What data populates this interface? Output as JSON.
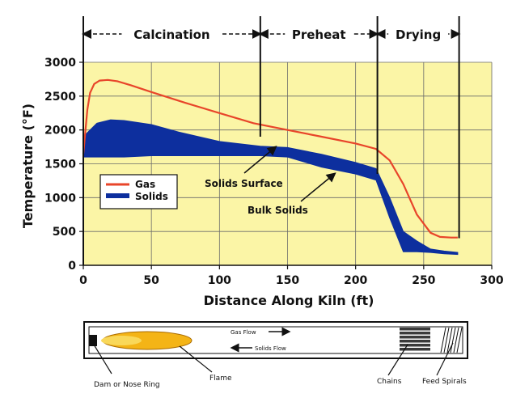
{
  "colors": {
    "background": "#ffffff",
    "plot_area": "#fbf5a6",
    "gas": "#e8452a",
    "solids": "#0d2f9e",
    "flame": "#f4b416",
    "chains": "#3a3a3a"
  },
  "zones": [
    {
      "label": "Calcination",
      "from": 0,
      "to": 130
    },
    {
      "label": "Preheat",
      "from": 130,
      "to": 216
    },
    {
      "label": "Drying",
      "from": 216,
      "to": 276
    }
  ],
  "annotations": {
    "solids_surface": "Solids Surface",
    "bulk_solids": "Bulk Solids"
  },
  "kiln": {
    "gas_flow": "Gas Flow",
    "solids_flow": "Solids Flow",
    "labels": [
      "Dam or Nose Ring",
      "Flame",
      "Chains",
      "Feed Spirals"
    ]
  },
  "chart_data": {
    "type": "line",
    "title": "",
    "xlabel": "Distance Along Kiln (ft)",
    "ylabel": "Temperature (°F)",
    "xlim": [
      0,
      300
    ],
    "ylim": [
      0,
      3000
    ],
    "xticks": [
      0,
      50,
      100,
      150,
      200,
      250,
      300
    ],
    "yticks": [
      0,
      500,
      1000,
      1500,
      2000,
      2500,
      3000
    ],
    "legend_position": "center-left",
    "series": [
      {
        "name": "Gas",
        "x": [
          0,
          3,
          5,
          8,
          12,
          18,
          25,
          35,
          50,
          75,
          100,
          125,
          150,
          175,
          200,
          215,
          225,
          235,
          245,
          255,
          262,
          270,
          275
        ],
        "y": [
          1650,
          2300,
          2550,
          2680,
          2730,
          2740,
          2720,
          2660,
          2560,
          2400,
          2250,
          2100,
          2000,
          1900,
          1800,
          1720,
          1550,
          1200,
          750,
          480,
          420,
          410,
          410
        ]
      },
      {
        "name": "Solids",
        "x": [
          0,
          10,
          20,
          30,
          50,
          70,
          100,
          130,
          150,
          175,
          200,
          215,
          225,
          235,
          245,
          255,
          265,
          275
        ],
        "y_low": [
          1600,
          1600,
          1600,
          1600,
          1620,
          1620,
          1620,
          1620,
          1600,
          1450,
          1350,
          1260,
          700,
          200,
          200,
          190,
          170,
          160
        ],
        "y_high": [
          1900,
          2100,
          2150,
          2140,
          2080,
          1970,
          1830,
          1760,
          1740,
          1640,
          1520,
          1430,
          1000,
          500,
          360,
          240,
          210,
          190
        ]
      }
    ]
  }
}
